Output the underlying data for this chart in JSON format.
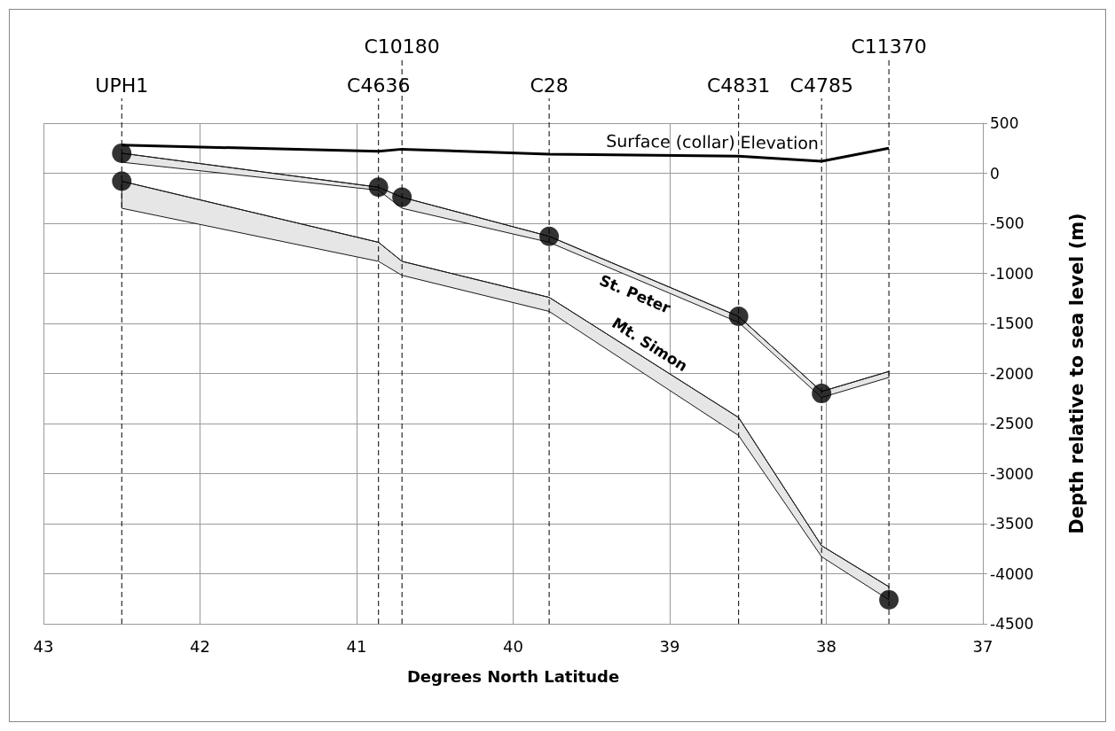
{
  "chart_data": {
    "type": "line",
    "xlabel": "Degrees North Latitude",
    "ylabel": "Depth relative to sea level (m)",
    "x": [
      42.5,
      40.86,
      40.71,
      39.77,
      38.56,
      38.03,
      37.6
    ],
    "series": [
      {
        "name": "Surface (collar) Elevation",
        "color": "#000000",
        "values": [
          280,
          220,
          240,
          190,
          170,
          120,
          250
        ]
      },
      {
        "name": "St. Peter",
        "type": "line",
        "color": "#1a1a1a",
        "values": [
          200,
          -140,
          -240,
          -630,
          -1430,
          -2180,
          -1980
        ],
        "upper": [
          200,
          -140,
          -240,
          -630,
          -1430,
          -2180,
          -1980
        ],
        "lower": [
          110,
          -170,
          -350,
          -690,
          -1490,
          -2240,
          -2040
        ]
      },
      {
        "name": "Mt. Simon",
        "type": "line",
        "color": "#1a1a1a",
        "values": [
          -80,
          -690,
          -880,
          -1240,
          -2440,
          -3720,
          -4130
        ],
        "upper": [
          -80,
          -690,
          -880,
          -1240,
          -2440,
          -3720,
          -4130
        ],
        "lower": [
          -350,
          -880,
          -1020,
          -1380,
          -2620,
          -3830,
          -4260
        ]
      },
      {
        "type": "scatter",
        "color": "#000000",
        "marker": "circle",
        "x": [
          42.5,
          42.5,
          40.86,
          40.71,
          39.77,
          38.56,
          38.03,
          37.6
        ],
        "values": [
          200,
          -80,
          -140,
          -240,
          -630,
          -1430,
          -2200,
          -4260
        ]
      }
    ],
    "ref_lines": [
      {
        "axis": "x",
        "value": 42.5,
        "label": "UPH1",
        "color": "#000000",
        "line_style": "dashed"
      },
      {
        "axis": "x",
        "value": 40.86,
        "label": "C4636",
        "color": "#000000",
        "line_style": "dashed"
      },
      {
        "axis": "x",
        "value": 40.71,
        "label": "C10180",
        "color": "#000000",
        "line_style": "dashed"
      },
      {
        "axis": "x",
        "value": 39.77,
        "label": "C28",
        "color": "#000000",
        "line_style": "dashed"
      },
      {
        "axis": "x",
        "value": 38.56,
        "label": "C4831",
        "color": "#000000",
        "line_style": "dashed"
      },
      {
        "axis": "x",
        "value": 38.03,
        "label": "C4785",
        "color": "#000000",
        "line_style": "dashed"
      },
      {
        "axis": "x",
        "value": 37.6,
        "label": "C11370",
        "color": "#000000",
        "line_style": "dashed"
      }
    ],
    "xlim": [
      43,
      37
    ],
    "xticks": [
      43,
      42,
      41,
      40,
      39,
      38,
      37
    ],
    "ylim": [
      -4500,
      500
    ],
    "yticks": [
      -4500,
      -4000,
      -3500,
      -3000,
      -2500,
      -2000,
      -1500,
      -1000,
      -500,
      0,
      500
    ],
    "grid": true,
    "legend": false
  }
}
